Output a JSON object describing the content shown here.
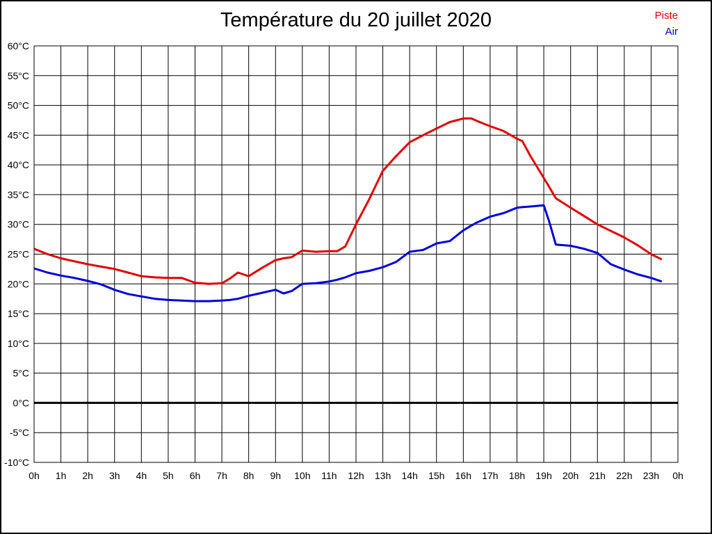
{
  "legend": [
    {
      "label": "Piste",
      "color": "#e10000"
    },
    {
      "label": "Air",
      "color": "#0000d9"
    }
  ],
  "colors": {
    "piste": "#e10000",
    "air": "#0000d9",
    "grid": "#000000",
    "zero_line": "#000000",
    "background": "#ffffff"
  },
  "chart_data": {
    "type": "line",
    "title": "Température du 20 juillet 2020",
    "xlabel": "",
    "ylabel": "",
    "xlim": [
      0,
      24
    ],
    "ylim": [
      -10,
      60
    ],
    "grid": true,
    "legend_position": "top-right",
    "x_ticks": {
      "values": [
        0,
        1,
        2,
        3,
        4,
        5,
        6,
        7,
        8,
        9,
        10,
        11,
        12,
        13,
        14,
        15,
        16,
        17,
        18,
        19,
        20,
        21,
        22,
        23,
        24
      ],
      "labels": [
        "0h",
        "1h",
        "2h",
        "3h",
        "4h",
        "5h",
        "6h",
        "7h",
        "8h",
        "9h",
        "10h",
        "11h",
        "12h",
        "13h",
        "14h",
        "15h",
        "16h",
        "17h",
        "18h",
        "19h",
        "20h",
        "21h",
        "22h",
        "23h",
        "0h"
      ]
    },
    "y_ticks": {
      "values": [
        60,
        55,
        50,
        45,
        40,
        35,
        30,
        25,
        20,
        15,
        10,
        5,
        0,
        -5,
        -10
      ],
      "labels": [
        "60°C",
        "55°C",
        "50°C",
        "45°C",
        "40°C",
        "35°C",
        "30°C",
        "25°C",
        "20°C",
        "15°C",
        "10°C",
        "5°C",
        "0°C",
        "-5°C",
        "-10°C"
      ]
    },
    "x": [
      0,
      0.5,
      1,
      1.5,
      2,
      2.5,
      3,
      3.5,
      4,
      4.5,
      5,
      5.5,
      6,
      6.5,
      7,
      7.3,
      7.6,
      8,
      8.5,
      9,
      9.3,
      9.6,
      10,
      10.5,
      11,
      11.3,
      11.6,
      12,
      12.5,
      13,
      13.5,
      14,
      14.5,
      15,
      15.5,
      16,
      16.3,
      16.5,
      17,
      17.5,
      18,
      18.2,
      18.5,
      19,
      19.2,
      19.45,
      20,
      20.5,
      21,
      21.5,
      22,
      22.5,
      23,
      23.4
    ],
    "series": [
      {
        "name": "Piste",
        "color": "#e10000",
        "values": [
          25.9,
          25.0,
          24.3,
          23.8,
          23.3,
          22.9,
          22.5,
          21.9,
          21.3,
          21.1,
          21.0,
          21.0,
          20.2,
          20.0,
          20.1,
          20.9,
          21.9,
          21.3,
          22.7,
          24.0,
          24.3,
          24.5,
          25.6,
          25.4,
          25.5,
          25.5,
          26.3,
          30.0,
          34.3,
          39.0,
          41.5,
          43.8,
          45.0,
          46.1,
          47.2,
          47.8,
          47.8,
          47.4,
          46.5,
          45.7,
          44.4,
          44.0,
          41.5,
          37.8,
          36.3,
          34.4,
          32.8,
          31.4,
          30.0,
          28.9,
          27.8,
          26.5,
          25.0,
          24.1
        ]
      },
      {
        "name": "Air",
        "color": "#0000d9",
        "values": [
          22.6,
          21.9,
          21.4,
          21.0,
          20.5,
          19.9,
          19.0,
          18.3,
          17.9,
          17.5,
          17.3,
          17.2,
          17.1,
          17.1,
          17.2,
          17.3,
          17.5,
          18.0,
          18.5,
          19.0,
          18.4,
          18.8,
          20.0,
          20.1,
          20.4,
          20.7,
          21.1,
          21.8,
          22.2,
          22.8,
          23.7,
          25.4,
          25.7,
          26.8,
          27.2,
          29.0,
          29.8,
          30.3,
          31.3,
          31.9,
          32.8,
          32.9,
          33.0,
          33.2,
          30.5,
          26.6,
          26.4,
          25.9,
          25.2,
          23.3,
          22.4,
          21.6,
          21.0,
          20.4
        ]
      }
    ]
  }
}
